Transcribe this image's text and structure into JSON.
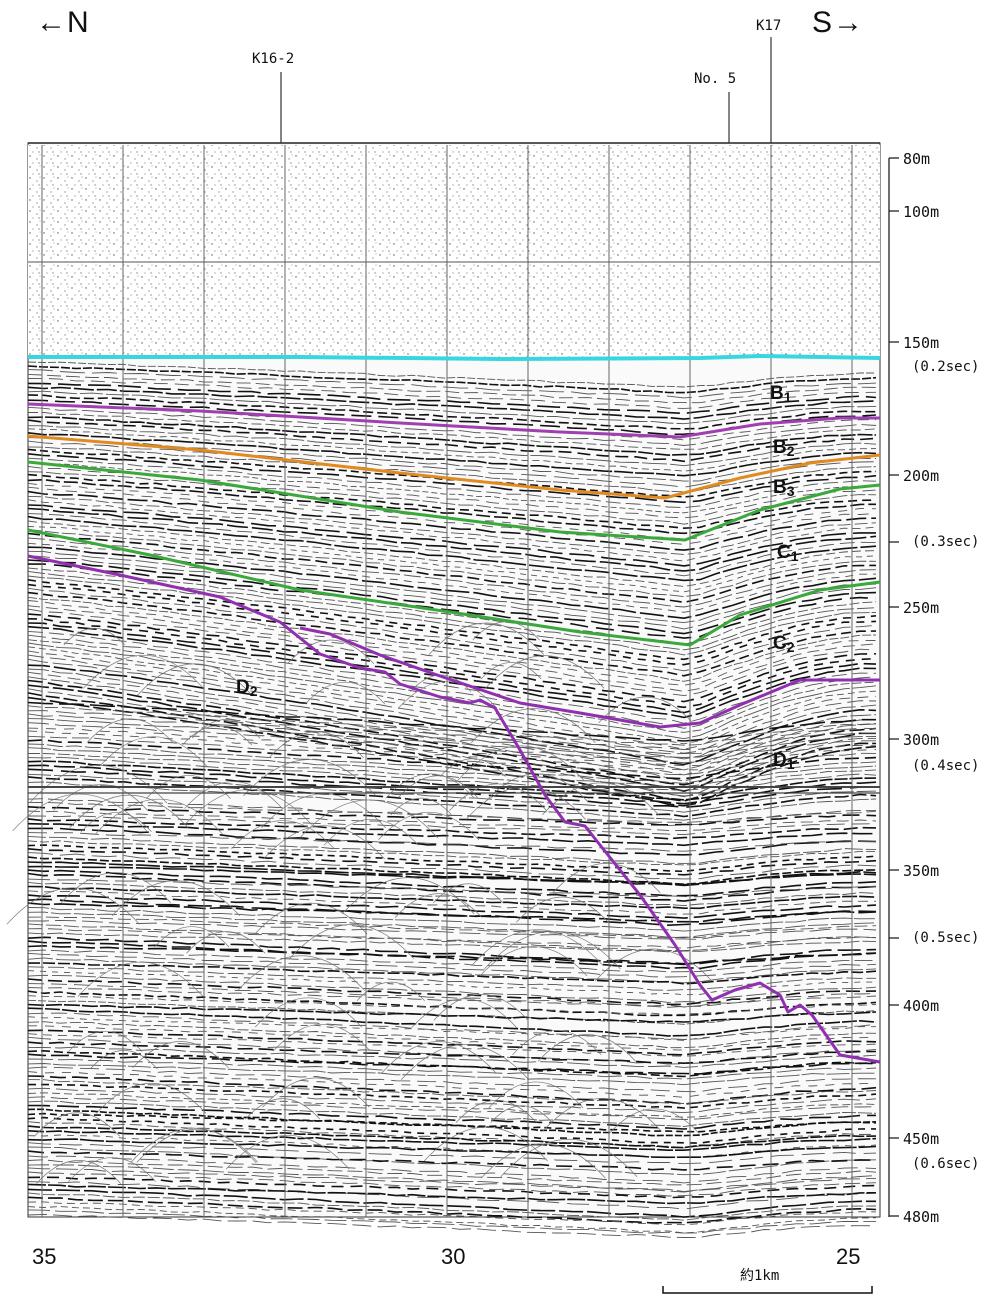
{
  "directions": {
    "north": "←N",
    "south": "S→"
  },
  "survey_points": [
    {
      "id": "k16",
      "label": "K16-2"
    },
    {
      "id": "no5",
      "label": "No. 5"
    },
    {
      "id": "k17",
      "label": "K17"
    }
  ],
  "depth_scale": [
    {
      "depth": "80m"
    },
    {
      "depth": "100m"
    },
    {
      "depth": "150m",
      "time": "(0.2sec)"
    },
    {
      "depth": "200m"
    },
    {
      "depth": "",
      "time": "(0.3sec)"
    },
    {
      "depth": "250m"
    },
    {
      "depth": "300m",
      "time": "(0.4sec)"
    },
    {
      "depth": "350m"
    },
    {
      "depth": "",
      "time": "(0.5sec)"
    },
    {
      "depth": "400m"
    },
    {
      "depth": "450m",
      "time": "(0.6sec)"
    },
    {
      "depth": "480m"
    }
  ],
  "layers": [
    {
      "id": "b1",
      "base": "B",
      "sub": "1"
    },
    {
      "id": "b2",
      "base": "B",
      "sub": "2"
    },
    {
      "id": "b3",
      "base": "B",
      "sub": "3"
    },
    {
      "id": "c1",
      "base": "C",
      "sub": "1"
    },
    {
      "id": "c2",
      "base": "C",
      "sub": "2"
    },
    {
      "id": "d1",
      "base": "D",
      "sub": "1"
    },
    {
      "id": "d2",
      "base": "D",
      "sub": "2"
    }
  ],
  "x_labels": [
    "35",
    "30",
    "25"
  ],
  "scale_bar": {
    "label": "約1km"
  },
  "horizon_colors": {
    "seabed": "#38d6e0",
    "b_top": "#a040b0",
    "b_mid": "#e08a20",
    "c_top": "#3aa83a",
    "c_base": "#3aa83a",
    "d_top": "#9030b0"
  }
}
